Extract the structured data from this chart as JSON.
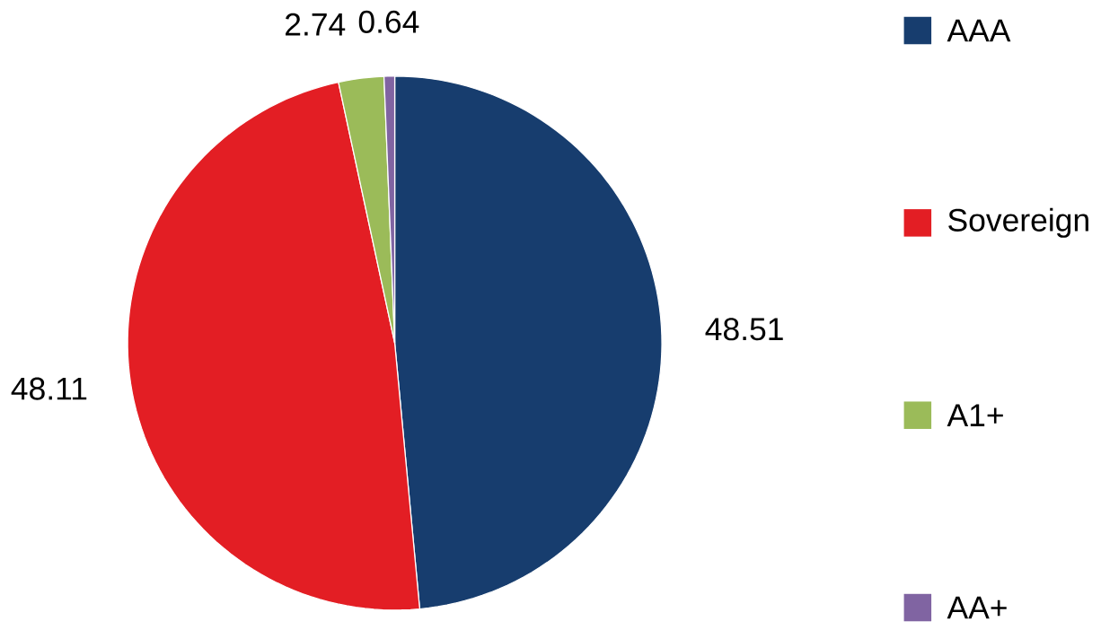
{
  "chart_data": {
    "type": "pie",
    "categories": [
      "AAA",
      "Sovereign",
      "A1+",
      "AA+"
    ],
    "values": [
      48.51,
      48.11,
      2.74,
      0.64
    ],
    "colors": [
      "#173d6e",
      "#e31e24",
      "#9bbb59",
      "#8064a2"
    ],
    "data_labels": true,
    "legend": "right"
  }
}
